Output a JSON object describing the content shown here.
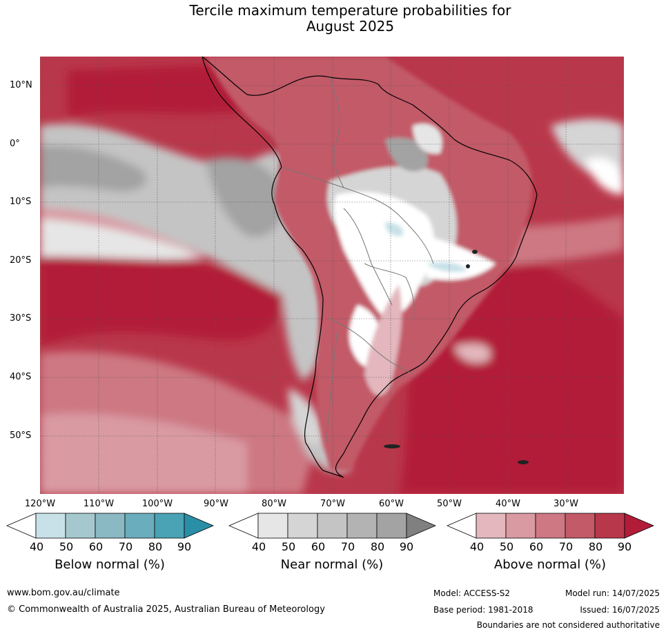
{
  "title": {
    "line1": "Tercile maximum temperature probabilities for",
    "line2": "August 2025"
  },
  "map": {
    "lat_labels": [
      "10°N",
      "0°",
      "10°S",
      "20°S",
      "30°S",
      "40°S",
      "50°S"
    ],
    "lon_labels": [
      "120°W",
      "110°W",
      "100°W",
      "90°W",
      "80°W",
      "70°W",
      "60°W",
      "50°W",
      "40°W",
      "30°W"
    ]
  },
  "colorbars": [
    {
      "label": "Below normal (%)",
      "ticks": [
        "40",
        "50",
        "60",
        "70",
        "80",
        "90"
      ],
      "colors": [
        "#ffffff",
        "#c8e1e8",
        "#a5c8cf",
        "#8ab8c3",
        "#6aadbd",
        "#4aa2b5",
        "#2a8fa6"
      ]
    },
    {
      "label": "Near normal (%)",
      "ticks": [
        "40",
        "50",
        "60",
        "70",
        "80",
        "90"
      ],
      "colors": [
        "#ffffff",
        "#e6e6e6",
        "#d5d5d5",
        "#c4c4c4",
        "#b3b3b3",
        "#a3a3a3",
        "#808080"
      ]
    },
    {
      "label": "Above normal (%)",
      "ticks": [
        "40",
        "50",
        "60",
        "70",
        "80",
        "90"
      ],
      "colors": [
        "#ffffff",
        "#e3b7bd",
        "#d99aa2",
        "#cd7883",
        "#c25a67",
        "#b9374a",
        "#b21c38"
      ]
    }
  ],
  "footer": {
    "website": "www.bom.gov.au/climate",
    "copyright": "© Commonwealth of Australia 2025, Australian Bureau of Meteorology",
    "model": "Model: ACCESS-S2",
    "base_period": "Base period: 1981-2018",
    "model_run": "Model run: 14/07/2025",
    "issued": "Issued: 16/07/2025",
    "disclaimer": "Boundaries are not considered authoritative"
  }
}
